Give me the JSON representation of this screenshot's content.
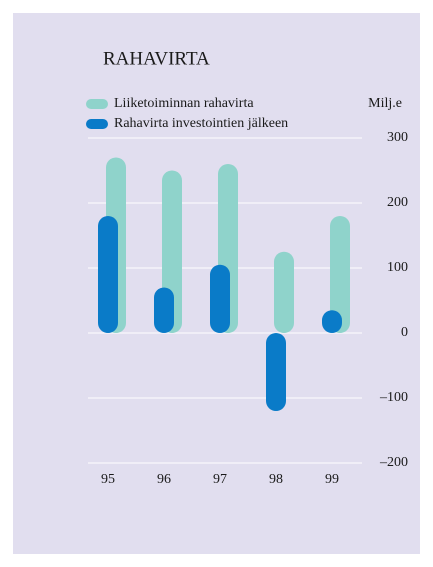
{
  "chart_data": {
    "type": "bar",
    "title": "RAHAVIRTA",
    "y_axis_label": "Milj.e",
    "categories": [
      "95",
      "96",
      "97",
      "98",
      "99"
    ],
    "series": [
      {
        "name": "Liiketoiminnan rahavirta",
        "color": "#8fd3cb",
        "values": [
          270,
          250,
          260,
          125,
          180
        ]
      },
      {
        "name": "Rahavirta investointien jälkeen",
        "color": "#0a7bc8",
        "values": [
          180,
          70,
          105,
          -120,
          35
        ]
      }
    ],
    "ylim": [
      -200,
      300
    ],
    "yticks": [
      300,
      200,
      100,
      0,
      {
        "value": -100,
        "label": "–100"
      },
      {
        "value": -200,
        "label": "–200"
      }
    ],
    "grid": true
  }
}
